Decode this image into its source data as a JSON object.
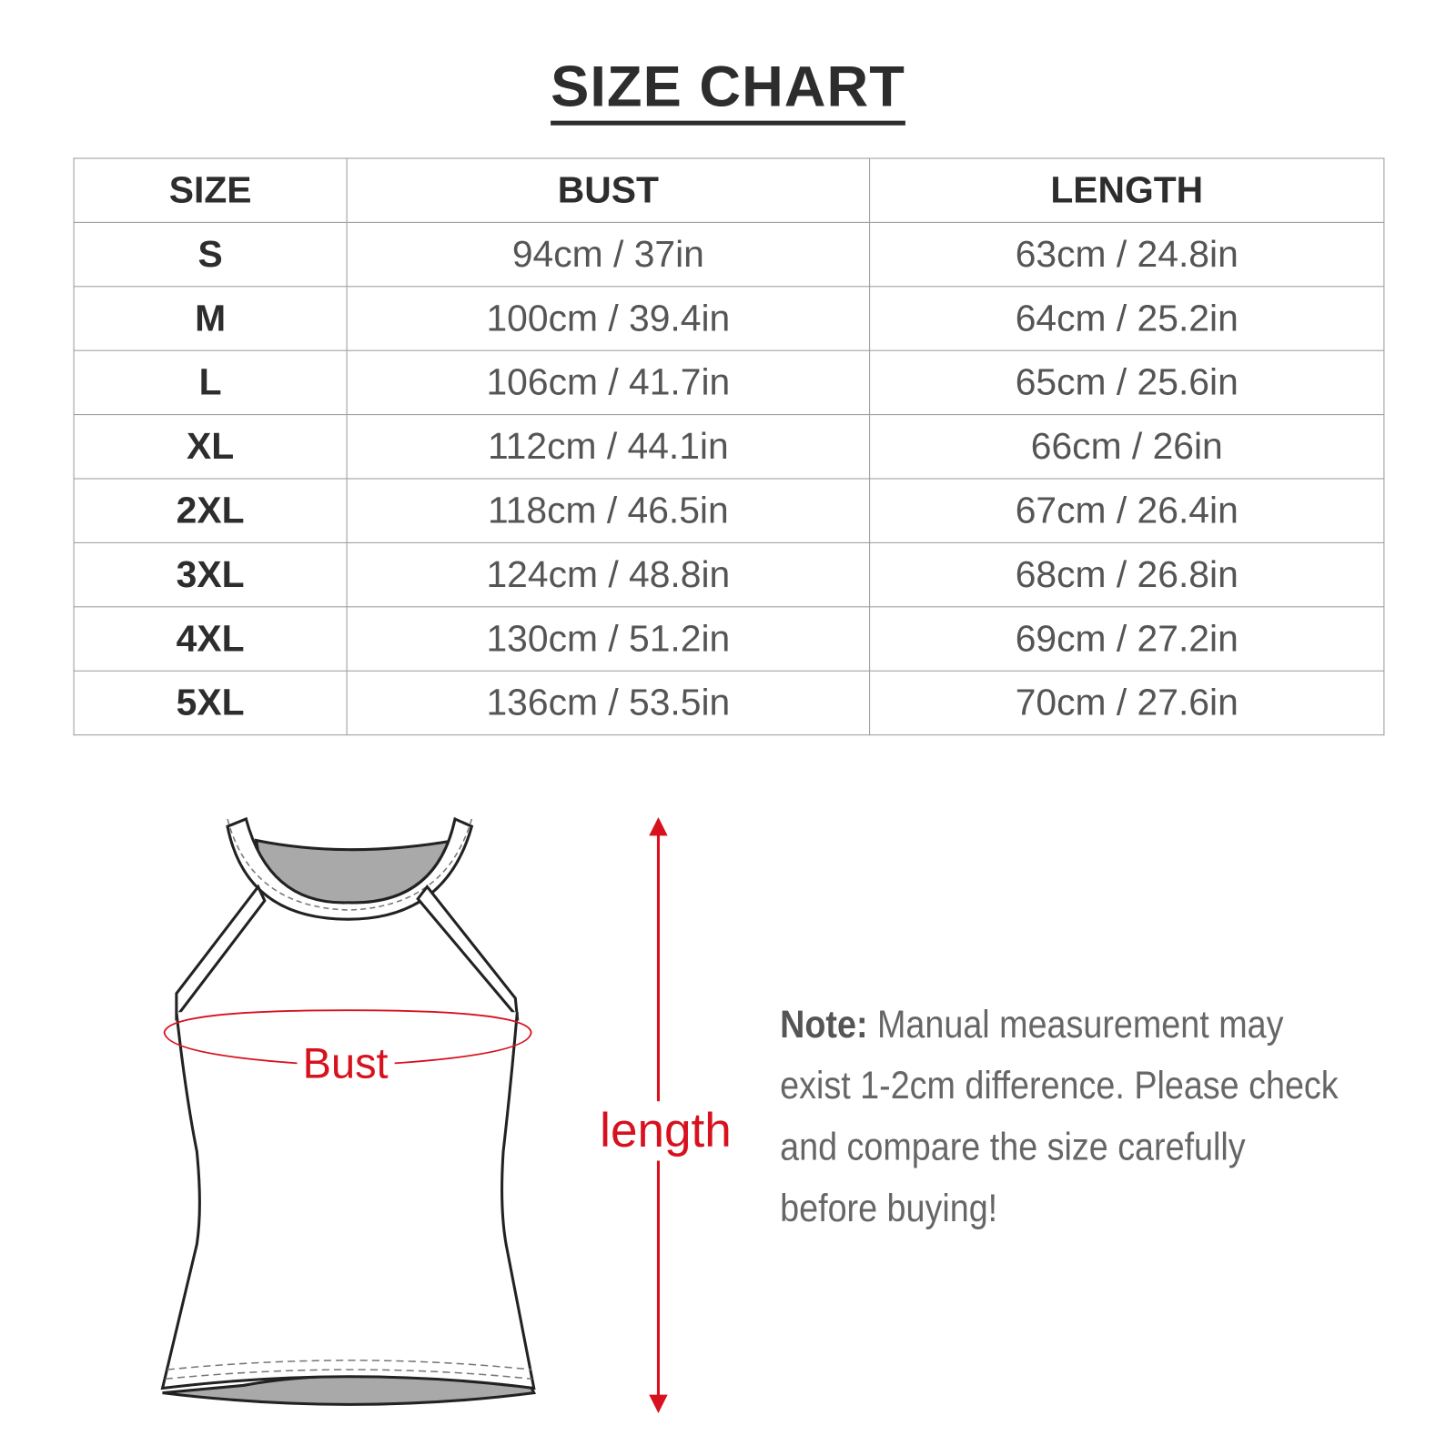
{
  "title": "SIZE CHART",
  "table": {
    "headers": [
      "SIZE",
      "BUST",
      "LENGTH"
    ],
    "rows": [
      {
        "size": "S",
        "bust": "94cm / 37in",
        "length": "63cm / 24.8in"
      },
      {
        "size": "M",
        "bust": "100cm / 39.4in",
        "length": "64cm / 25.2in"
      },
      {
        "size": "L",
        "bust": "106cm / 41.7in",
        "length": "65cm / 25.6in"
      },
      {
        "size": "XL",
        "bust": "112cm / 44.1in",
        "length": "66cm / 26in"
      },
      {
        "size": "2XL",
        "bust": "118cm / 46.5in",
        "length": "67cm / 26.4in"
      },
      {
        "size": "3XL",
        "bust": "124cm / 48.8in",
        "length": "68cm / 26.8in"
      },
      {
        "size": "4XL",
        "bust": "130cm / 51.2in",
        "length": "69cm / 27.2in"
      },
      {
        "size": "5XL",
        "bust": "136cm / 53.5in",
        "length": "70cm / 27.6in"
      }
    ]
  },
  "diagram": {
    "bust_label": "Bust",
    "length_label": "length",
    "accent_color": "#d7111d"
  },
  "note": {
    "label": "Note:",
    "text": "Manual measurement may exist 1-2cm difference. Please check and compare the size carefully before buying!"
  }
}
